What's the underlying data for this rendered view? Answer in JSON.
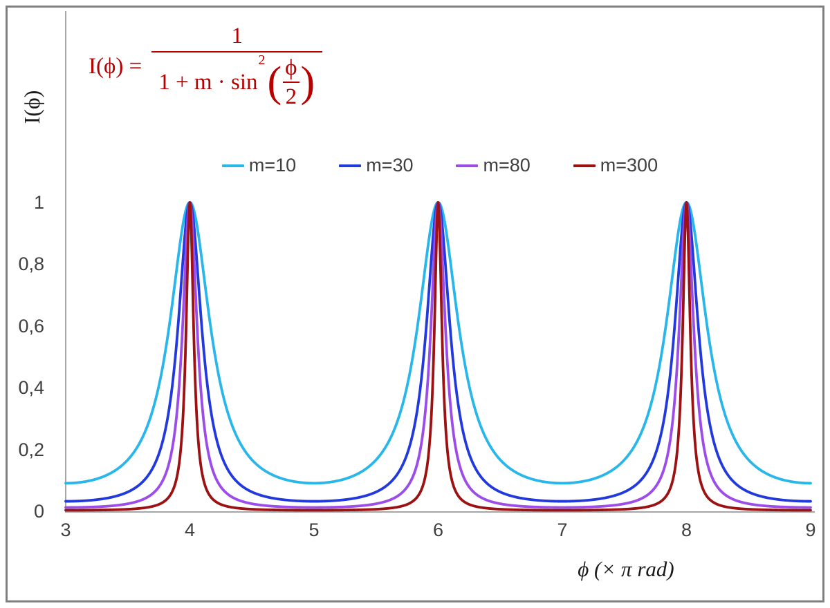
{
  "chart_data": {
    "type": "line",
    "title": "",
    "formula_text": "I(ϕ) = 1 / (1 + m·sin²(ϕ/2))",
    "xlabel": "ϕ  (× π rad)",
    "ylabel": "I(ϕ)",
    "x_units": "multiples of π rad",
    "xlim": [
      3,
      9
    ],
    "ylim": [
      0,
      1
    ],
    "x_ticks": [
      3,
      4,
      5,
      6,
      7,
      8,
      9
    ],
    "x_tick_labels": [
      "3",
      "4",
      "5",
      "6",
      "7",
      "8",
      "9"
    ],
    "y_ticks": [
      0,
      0.2,
      0.4,
      0.6,
      0.8,
      1
    ],
    "y_tick_labels": [
      "0",
      "0,2",
      "0,4",
      "0,6",
      "0,8",
      "1"
    ],
    "grid": false,
    "legend_position": "top-center",
    "generator_function": "I(x) = 1 / (1 + m * sin^2(x*pi/2)) with x in units of pi rad",
    "sample_step": 0.004,
    "series": [
      {
        "name": "m=10",
        "m": 10,
        "color": "#29b6ea"
      },
      {
        "name": "m=30",
        "m": 30,
        "color": "#2139dd"
      },
      {
        "name": "m=80",
        "m": 80,
        "color": "#9c4ce8"
      },
      {
        "name": "m=300",
        "m": 300,
        "color": "#9c1111"
      }
    ],
    "peaks_x": [
      4,
      6,
      8
    ],
    "peak_value": 1,
    "edge_values_at_x3": [
      0.0909,
      0.0323,
      0.0123,
      0.0033
    ]
  },
  "formula": {
    "lhs": "I(ϕ) =",
    "numerator": "1",
    "den_prefix": "1 + m · sin",
    "den_sup": "2",
    "open_paren": "(",
    "close_paren": ")",
    "inner_num": "ϕ",
    "inner_den": "2"
  },
  "colors": {
    "formula": "#b80000",
    "axis_line": "#a6a6a6",
    "tick_label": "#3f3f3f",
    "frame_border": "#808080",
    "background": "#ffffff"
  }
}
